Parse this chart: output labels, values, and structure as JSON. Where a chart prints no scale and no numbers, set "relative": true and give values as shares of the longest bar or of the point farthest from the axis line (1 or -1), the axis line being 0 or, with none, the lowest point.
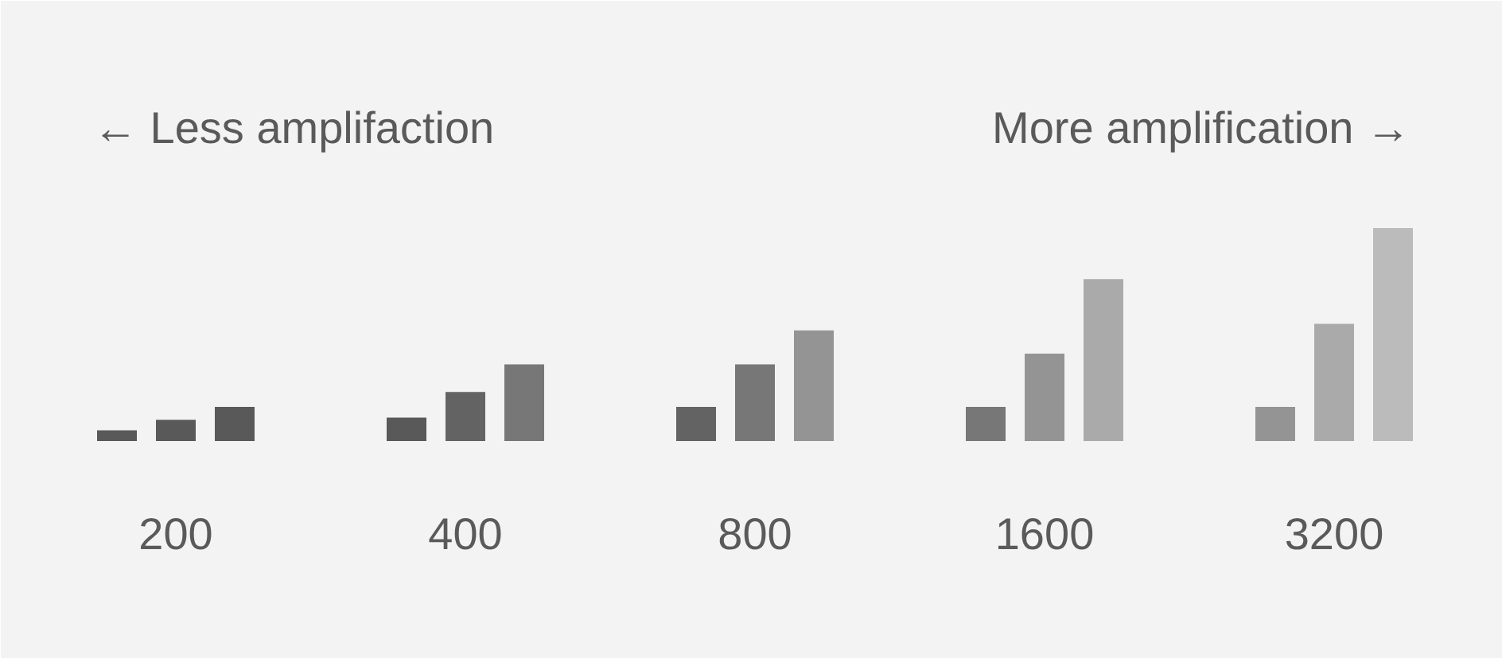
{
  "chart_data": {
    "type": "bar",
    "relative": true,
    "annotations": [
      "← Less amplifaction",
      "More amplification →"
    ],
    "categories": [
      "200",
      "400",
      "800",
      "1600",
      "3200"
    ],
    "series": [
      {
        "values": [
          0.05,
          0.11,
          0.16,
          0.16,
          0.16
        ],
        "colors": [
          "#595959",
          "#595959",
          "#636363",
          "#777777",
          "#949494"
        ]
      },
      {
        "values": [
          0.1,
          0.23,
          0.36,
          0.41,
          0.55
        ],
        "colors": [
          "#595959",
          "#636363",
          "#777777",
          "#949494",
          "#aaaaaa"
        ]
      },
      {
        "values": [
          0.16,
          0.36,
          0.52,
          0.76,
          1.0
        ],
        "colors": [
          "#595959",
          "#777777",
          "#949494",
          "#aaaaaa",
          "#bbbbbb"
        ]
      }
    ]
  }
}
